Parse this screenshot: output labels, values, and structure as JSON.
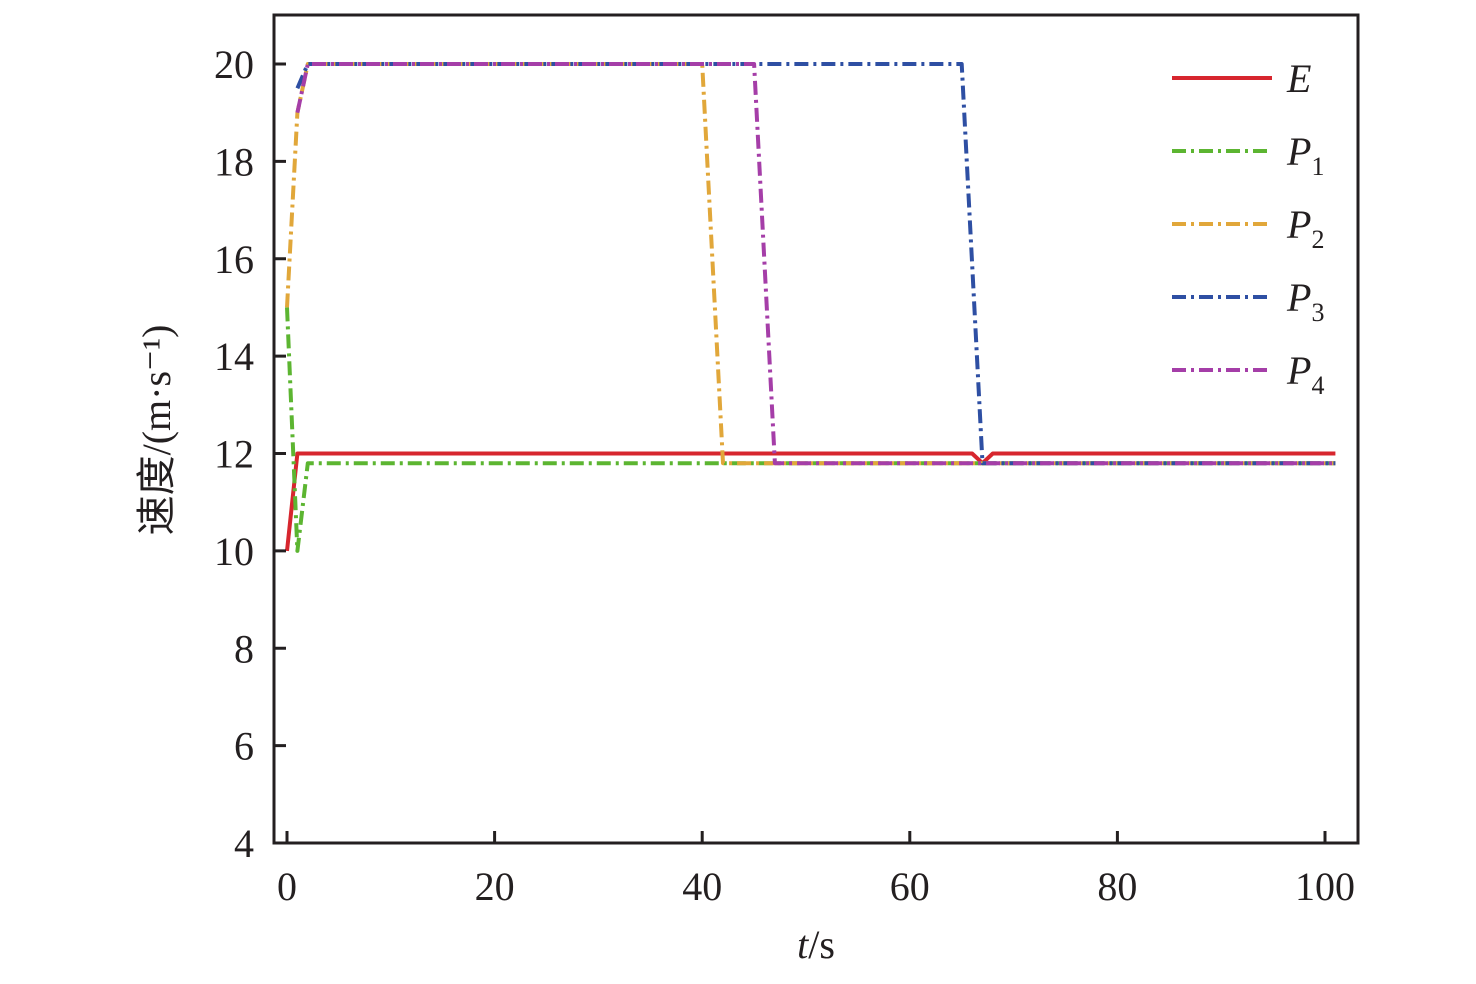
{
  "chart_data": {
    "type": "line",
    "xlabel": {
      "var": "t",
      "unit": "/s"
    },
    "ylabel": "速度/(m·s⁻¹)",
    "xlim": [
      -1,
      103
    ],
    "ylim": [
      4,
      21
    ],
    "xticks": [
      0,
      20,
      40,
      60,
      80,
      100
    ],
    "yticks": [
      4,
      6,
      8,
      10,
      12,
      14,
      16,
      18,
      20
    ],
    "legend_position": "top-right",
    "grid": false,
    "series": [
      {
        "name": "E",
        "base": "E",
        "sub": "",
        "color": "#d7262e",
        "dash": "solid",
        "x": [
          0,
          1,
          65,
          66,
          67,
          68,
          101
        ],
        "y": [
          10,
          12,
          12,
          12,
          11.8,
          12,
          12
        ]
      },
      {
        "name": "P1",
        "base": "P",
        "sub": "1",
        "color": "#5cb531",
        "dash": "dashdot",
        "x": [
          0,
          1,
          2,
          101
        ],
        "y": [
          15,
          10,
          11.8,
          11.8
        ]
      },
      {
        "name": "P2",
        "base": "P",
        "sub": "2",
        "color": "#e1a73a",
        "dash": "dashdot",
        "x": [
          0,
          1,
          2,
          40,
          42,
          101
        ],
        "y": [
          15,
          19,
          20,
          20,
          11.8,
          11.8
        ]
      },
      {
        "name": "P3",
        "base": "P",
        "sub": "3",
        "color": "#2e4fa3",
        "dash": "dashdot",
        "x": [
          1,
          2,
          65,
          67,
          101
        ],
        "y": [
          19.5,
          20,
          20,
          11.8,
          11.8
        ]
      },
      {
        "name": "P4",
        "base": "P",
        "sub": "4",
        "color": "#a53ea8",
        "dash": "dashdot",
        "x": [
          1,
          2,
          45,
          47,
          101
        ],
        "y": [
          19,
          20,
          20,
          11.8,
          11.8
        ]
      }
    ]
  }
}
